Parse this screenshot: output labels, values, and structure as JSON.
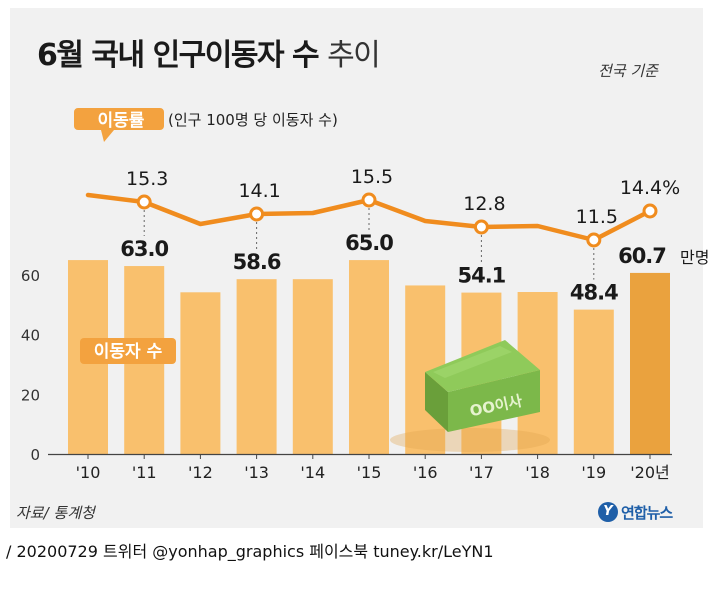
{
  "title": {
    "main": "6월 국내 인구이동자 수",
    "suffix": "추이"
  },
  "basis": "전국 기준",
  "source": "자료/ 통계청",
  "brand": {
    "mark": "Y",
    "name": "연합뉴스"
  },
  "footer": "/ 20200729  트위터 @yonhap_graphics  페이스북 tuney.kr/LeYN1",
  "illustration": {
    "box_label": "OO이사",
    "icon": "moving-box-icon"
  },
  "colors": {
    "bar": "#f9c06d",
    "bar_highlight": "#eaa23e",
    "line": "#f08c1e",
    "badge": "#f3a23f",
    "panel": "#f1f1f1"
  },
  "chart_data": {
    "type": "bar+line",
    "categories": [
      "'10",
      "'11",
      "'12",
      "'13",
      "'14",
      "'15",
      "'16",
      "'17",
      "'18",
      "'19",
      "'20년"
    ],
    "bar_series": {
      "name": "이동자 수",
      "values": [
        65.0,
        63.0,
        54.2,
        58.6,
        58.6,
        65.0,
        56.5,
        54.1,
        54.3,
        48.4,
        60.7
      ],
      "labels": [
        "",
        "63.0",
        "",
        "58.6",
        "",
        "65.0",
        "",
        "54.1",
        "",
        "48.4",
        "60.7"
      ],
      "last_label_unit": "만명",
      "yticks": [
        0,
        20,
        40,
        60
      ],
      "ylim": [
        0,
        80
      ]
    },
    "line_series": {
      "name": "이동률",
      "note": "(인구 100명 당 이동자 수)",
      "values": [
        16.0,
        15.3,
        13.1,
        14.1,
        14.2,
        15.5,
        13.4,
        12.8,
        12.9,
        11.5,
        14.4
      ],
      "labels": [
        "",
        "15.3",
        "",
        "14.1",
        "",
        "15.5",
        "",
        "12.8",
        "",
        "11.5",
        "14.4%"
      ],
      "ylim": [
        9.5,
        19.5
      ]
    },
    "grid": false,
    "legend": "inline"
  }
}
